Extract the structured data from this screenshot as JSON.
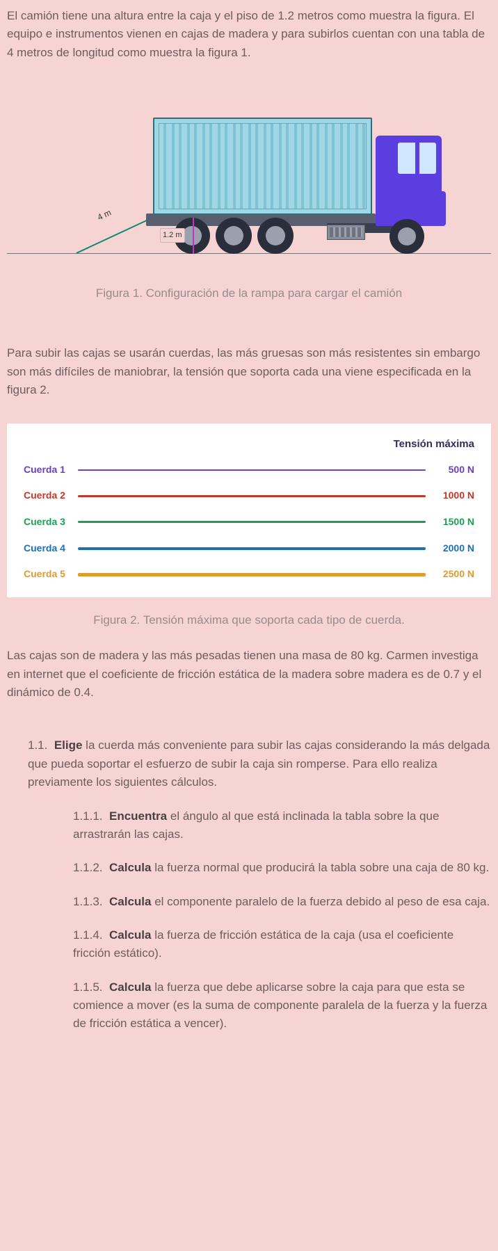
{
  "page_bg": "#f6d4d4",
  "text_color": "#6e5c5c",
  "intro_para": "El camión tiene una altura entre la caja y el piso de 1.2 metros como muestra la figura. El equipo e instrumentos vienen en cajas de madera y para subirlos cuentan con una tabla de 4 metros de longitud como muestra la figura 1.",
  "figure1": {
    "caption": "Figura 1. Configuración de la rampa para cargar el camión",
    "ramp_length_label": "4 m",
    "height_label": "1.2 m",
    "colors": {
      "ground": "#777777",
      "ramp": "#0a8a6a",
      "height_line": "#c930c9",
      "container_fill": "#9fd7e5",
      "container_border": "#3a6a7a",
      "cab": "#5a3ee0",
      "wheel": "#2a2e3a",
      "hub": "#9aa0ad",
      "trailer_bed": "#5a5f6f"
    }
  },
  "para2": "Para subir las cajas se usarán cuerdas, las más gruesas son más resistentes sin embargo son más difíciles de maniobrar, la tensión que soporta cada una viene especificada en la figura 2.",
  "figure2": {
    "title": "Tensión máxima",
    "caption": "Figura 2. Tensión máxima que soporta cada tipo de cuerda.",
    "bg": "#ffffff",
    "title_color": "#322e57",
    "ropes": [
      {
        "label": "Cuerda 1",
        "value_label": "500 N",
        "value": 500,
        "color": "#6a3fc5",
        "thickness": 2
      },
      {
        "label": "Cuerda 2",
        "value_label": "1000 N",
        "value": 1000,
        "color": "#c0392b",
        "thickness": 3
      },
      {
        "label": "Cuerda 3",
        "value_label": "1500 N",
        "value": 1500,
        "color": "#1e9e55",
        "thickness": 3
      },
      {
        "label": "Cuerda 4",
        "value_label": "2000 N",
        "value": 2000,
        "color": "#1f6fb2",
        "thickness": 4
      },
      {
        "label": "Cuerda 5",
        "value_label": "2500 N",
        "value": 2500,
        "color": "#e09b2d",
        "thickness": 5
      }
    ]
  },
  "para3": "Las cajas son de madera y las más pesadas tienen una masa de 80 kg. Carmen investiga en internet que el coeficiente de fricción estática de la madera sobre madera es de 0.7 y el dinámico de 0.4.",
  "questions": {
    "q11": {
      "num": "1.1.",
      "bold": "Elige",
      "text": " la cuerda más conveniente para subir las cajas considerando la más delgada que pueda soportar el esfuerzo de subir la caja sin romperse. Para ello realiza previamente los siguientes cálculos."
    },
    "subs": [
      {
        "num": "1.1.1.",
        "bold": "Encuentra",
        "text": " el ángulo al que está inclinada la tabla sobre la que arrastrarán las cajas."
      },
      {
        "num": "1.1.2.",
        "bold": "Calcula",
        "text": " la fuerza normal que producirá la tabla sobre una caja de 80 kg."
      },
      {
        "num": "1.1.3.",
        "bold": "Calcula",
        "text": " el componente paralelo de la fuerza debido al peso de esa caja."
      },
      {
        "num": "1.1.4.",
        "bold": "Calcula",
        "text": " la fuerza de fricción estática de la caja (usa el coeficiente fricción estático)."
      },
      {
        "num": "1.1.5.",
        "bold": "Calcula",
        "text": " la fuerza que debe aplicarse sobre la caja para que esta se comience a mover (es la suma de componente paralela de la fuerza y la fuerza de fricción estática a vencer)."
      }
    ]
  }
}
